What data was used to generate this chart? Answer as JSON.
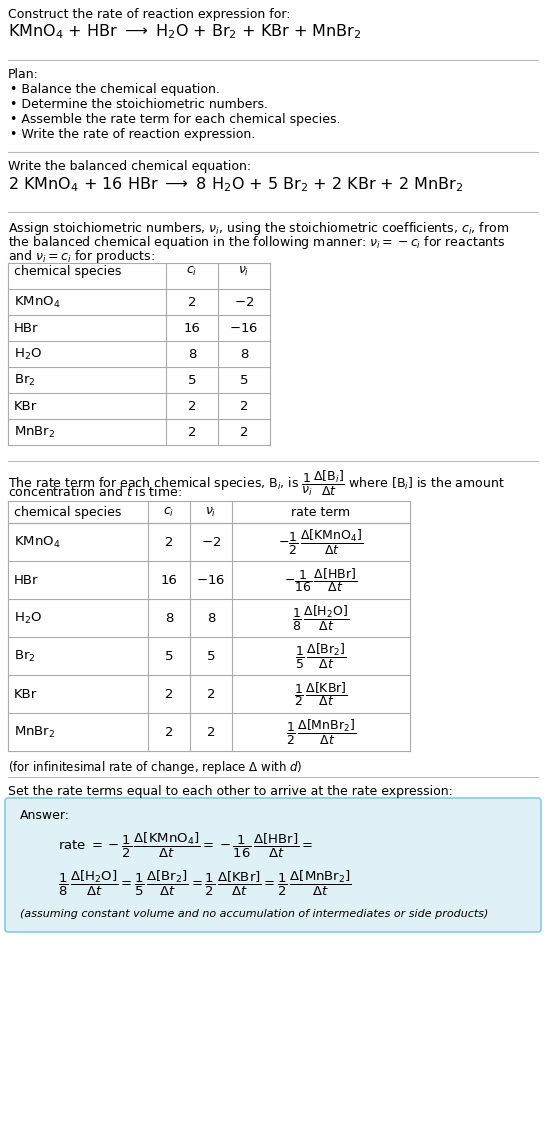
{
  "title_line1": "Construct the rate of reaction expression for:",
  "title_line2": "KMnO$_4$ + HBr $\\longrightarrow$ H$_2$O + Br$_2$ + KBr + MnBr$_2$",
  "plan_header": "Plan:",
  "plan_items": [
    "Balance the chemical equation.",
    "Determine the stoichiometric numbers.",
    "Assemble the rate term for each chemical species.",
    "Write the rate of reaction expression."
  ],
  "balanced_header": "Write the balanced chemical equation:",
  "balanced_eq": "2 KMnO$_4$ + 16 HBr $\\longrightarrow$ 8 H$_2$O + 5 Br$_2$ + 2 KBr + 2 MnBr$_2$",
  "stoich_para1": "Assign stoichiometric numbers, $\\nu_i$, using the stoichiometric coefficients, $c_i$, from",
  "stoich_para2": "the balanced chemical equation in the following manner: $\\nu_i = -c_i$ for reactants",
  "stoich_para3": "and $\\nu_i = c_i$ for products:",
  "table1_headers": [
    "chemical species",
    "$c_i$",
    "$\\nu_i$"
  ],
  "table1_rows": [
    [
      "KMnO$_4$",
      "2",
      "$-2$"
    ],
    [
      "HBr",
      "16",
      "$-16$"
    ],
    [
      "H$_2$O",
      "8",
      "8"
    ],
    [
      "Br$_2$",
      "5",
      "5"
    ],
    [
      "KBr",
      "2",
      "2"
    ],
    [
      "MnBr$_2$",
      "2",
      "2"
    ]
  ],
  "rate_intro1": "The rate term for each chemical species, B$_i$, is $\\dfrac{1}{\\nu_i}\\dfrac{\\Delta[\\mathrm{B}_i]}{\\Delta t}$ where [B$_i$] is the amount",
  "rate_intro2": "concentration and $t$ is time:",
  "table2_headers": [
    "chemical species",
    "$c_i$",
    "$\\nu_i$",
    "rate term"
  ],
  "table2_rows": [
    [
      "KMnO$_4$",
      "2",
      "$-2$",
      "$-\\dfrac{1}{2}\\,\\dfrac{\\Delta[\\mathrm{KMnO_4}]}{\\Delta t}$"
    ],
    [
      "HBr",
      "16",
      "$-16$",
      "$-\\dfrac{1}{16}\\,\\dfrac{\\Delta[\\mathrm{HBr}]}{\\Delta t}$"
    ],
    [
      "H$_2$O",
      "8",
      "8",
      "$\\dfrac{1}{8}\\,\\dfrac{\\Delta[\\mathrm{H_2O}]}{\\Delta t}$"
    ],
    [
      "Br$_2$",
      "5",
      "5",
      "$\\dfrac{1}{5}\\,\\dfrac{\\Delta[\\mathrm{Br_2}]}{\\Delta t}$"
    ],
    [
      "KBr",
      "2",
      "2",
      "$\\dfrac{1}{2}\\,\\dfrac{\\Delta[\\mathrm{KBr}]}{\\Delta t}$"
    ],
    [
      "MnBr$_2$",
      "2",
      "2",
      "$\\dfrac{1}{2}\\,\\dfrac{\\Delta[\\mathrm{MnBr_2}]}{\\Delta t}$"
    ]
  ],
  "infin_note": "(for infinitesimal rate of change, replace $\\Delta$ with $d$)",
  "set_equal_text": "Set the rate terms equal to each other to arrive at the rate expression:",
  "answer_label": "Answer:",
  "ans_rate_line1": "rate $= -\\dfrac{1}{2}\\,\\dfrac{\\Delta[\\mathrm{KMnO_4}]}{\\Delta t} = -\\dfrac{1}{16}\\,\\dfrac{\\Delta[\\mathrm{HBr}]}{\\Delta t} =$",
  "ans_rate_line2": "$\\dfrac{1}{8}\\,\\dfrac{\\Delta[\\mathrm{H_2O}]}{\\Delta t} = \\dfrac{1}{5}\\,\\dfrac{\\Delta[\\mathrm{Br_2}]}{\\Delta t} = \\dfrac{1}{2}\\,\\dfrac{\\Delta[\\mathrm{KBr}]}{\\Delta t} = \\dfrac{1}{2}\\,\\dfrac{\\Delta[\\mathrm{MnBr_2}]}{\\Delta t}$",
  "ans_note": "(assuming constant volume and no accumulation of intermediates or side products)",
  "bg_color": "#ffffff",
  "table_line_color": "#aaaaaa",
  "ans_box_bg": "#dff0f7",
  "ans_box_border": "#88ccdd"
}
